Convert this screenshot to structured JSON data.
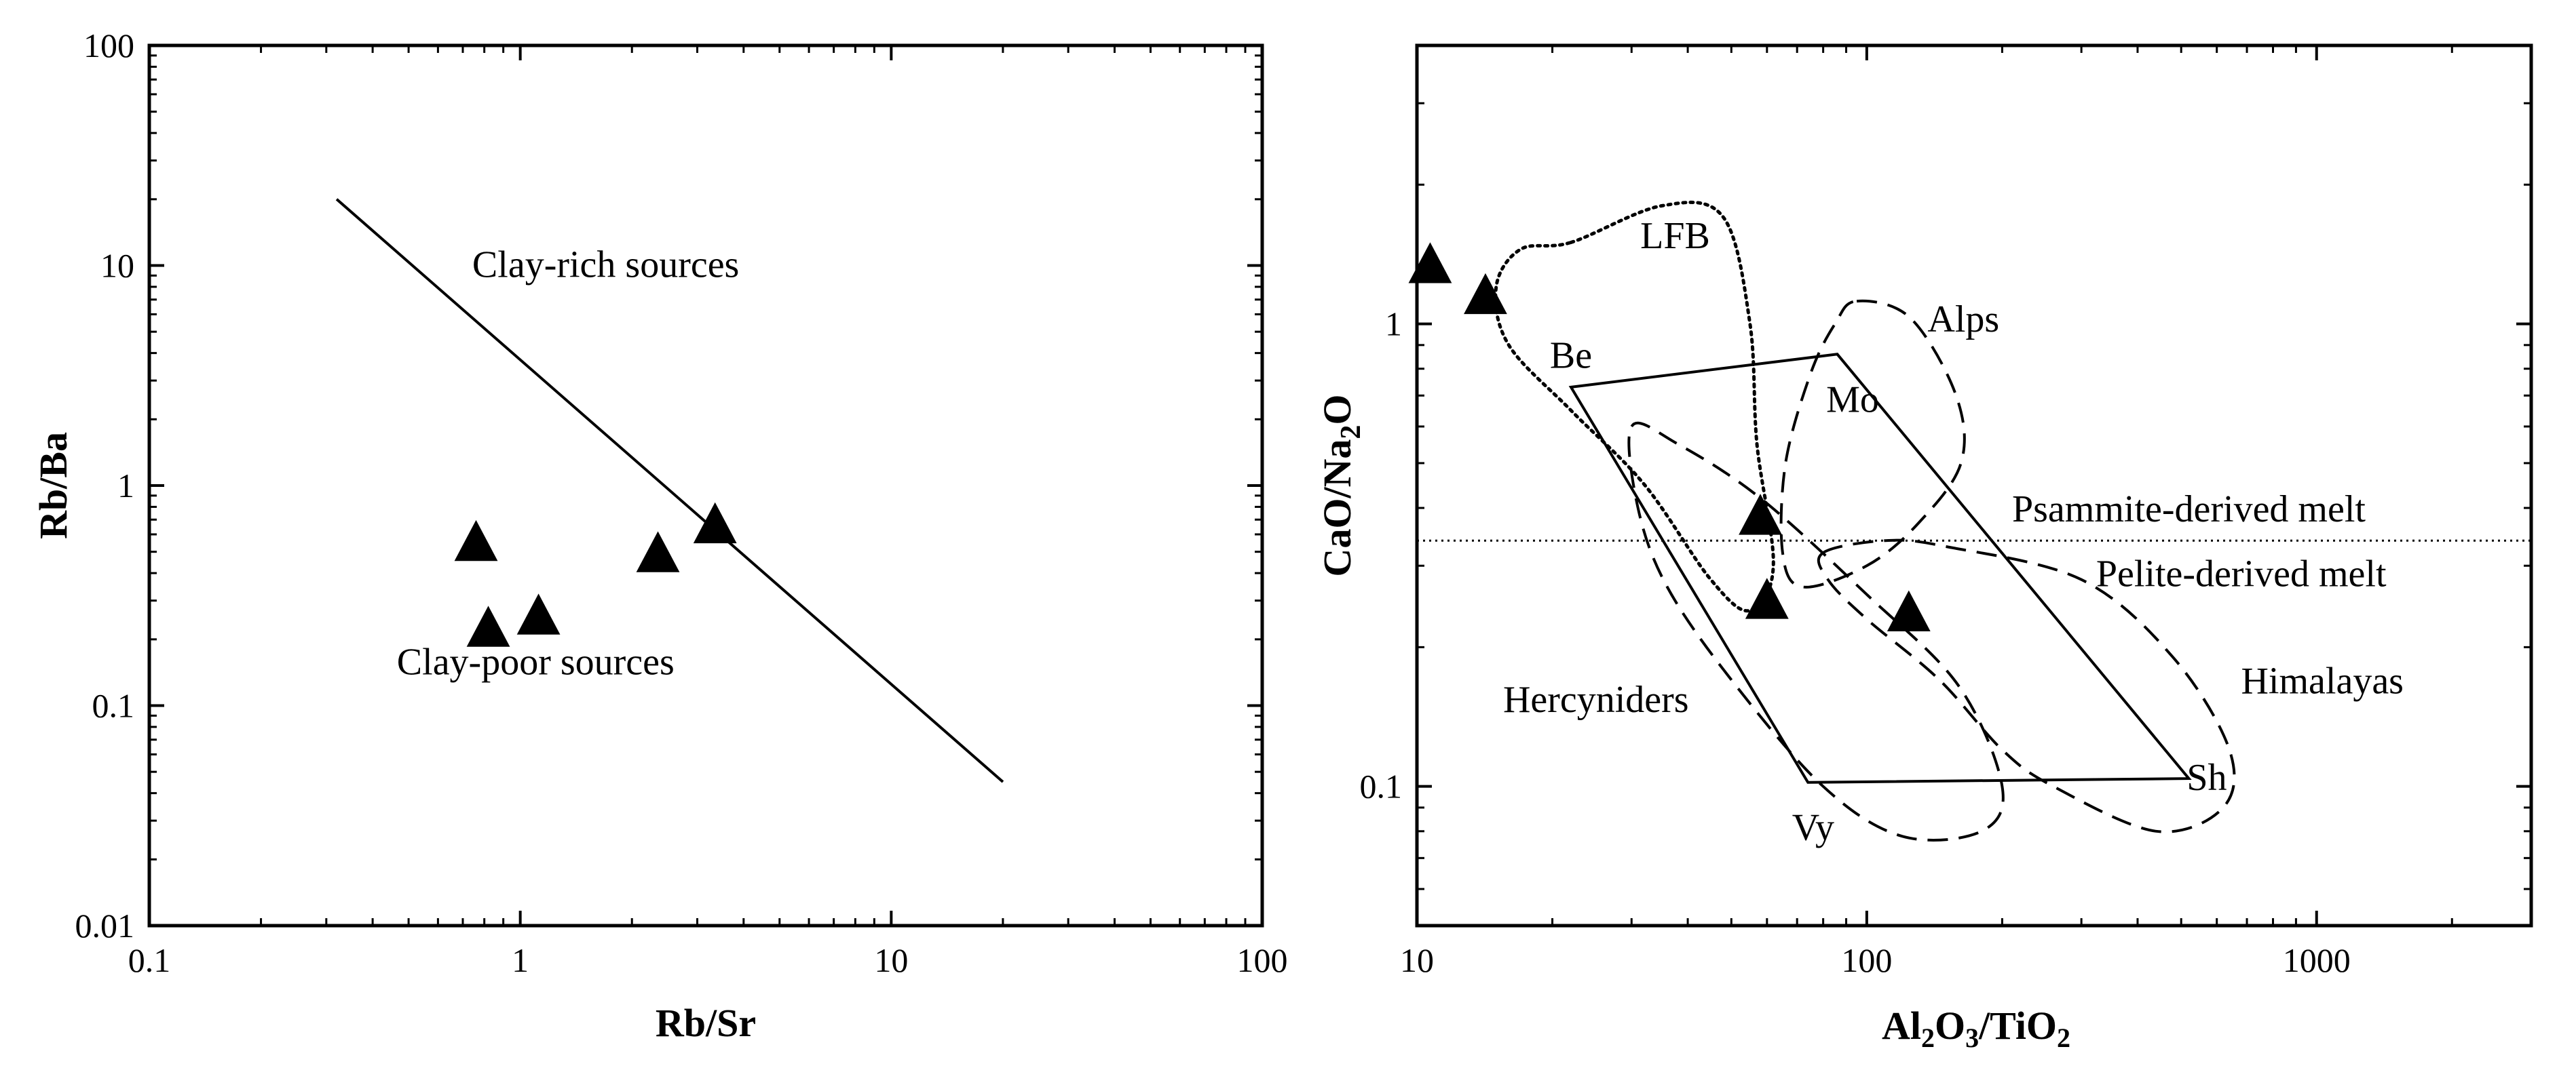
{
  "chart_data": [
    {
      "type": "scatter",
      "xscale": "log",
      "yscale": "log",
      "xlabel": "Rb/Sr",
      "ylabel": "Rb/Ba",
      "xlim": [
        0.1,
        100
      ],
      "ylim": [
        0.01,
        100
      ],
      "xticks": [
        {
          "value": 0.1,
          "label": "0.1"
        },
        {
          "value": 1,
          "label": "1"
        },
        {
          "value": 10,
          "label": "10"
        },
        {
          "value": 100,
          "label": "100"
        }
      ],
      "yticks": [
        {
          "value": 0.01,
          "label": "0.01"
        },
        {
          "value": 0.1,
          "label": "0.1"
        },
        {
          "value": 1,
          "label": "1"
        },
        {
          "value": 10,
          "label": "10"
        },
        {
          "value": 100,
          "label": "100"
        }
      ],
      "points": [
        {
          "x": 0.76,
          "y": 0.54
        },
        {
          "x": 0.82,
          "y": 0.22
        },
        {
          "x": 1.12,
          "y": 0.25
        },
        {
          "x": 2.35,
          "y": 0.48
        },
        {
          "x": 3.35,
          "y": 0.65
        }
      ],
      "lines": [
        {
          "name": "boundary",
          "style": "solid",
          "points": [
            [
              0.32,
              20
            ],
            [
              20,
              0.045
            ]
          ]
        }
      ],
      "annotations": [
        {
          "text": "Clay-rich sources",
          "x": 1.7,
          "y": 10.2
        },
        {
          "text": "Clay-poor sources",
          "x": 1.1,
          "y": 0.16
        }
      ]
    },
    {
      "type": "scatter",
      "xscale": "log",
      "yscale": "log",
      "xlabel": "Al₂O₃/TiO₂",
      "ylabel": "CaO/Na₂O",
      "xlim": [
        10,
        3000
      ],
      "ylim": [
        0.05,
        4
      ],
      "xticks": [
        {
          "value": 10,
          "label": "10"
        },
        {
          "value": 100,
          "label": "100"
        },
        {
          "value": 1000,
          "label": "1000"
        }
      ],
      "yticks": [
        {
          "value": 0.1,
          "label": "0.1"
        },
        {
          "value": 1,
          "label": "1"
        }
      ],
      "points": [
        {
          "x": 10.7,
          "y": 1.33
        },
        {
          "x": 14.2,
          "y": 1.14
        },
        {
          "x": 58,
          "y": 0.38
        },
        {
          "x": 60,
          "y": 0.25
        },
        {
          "x": 124,
          "y": 0.235
        }
      ],
      "lines": [
        {
          "name": "Psammite/Pelite boundary",
          "style": "dotted",
          "points": [
            [
              10,
              0.34
            ],
            [
              3000,
              0.34
            ]
          ]
        },
        {
          "name": "mixing-parallelogram",
          "style": "solid",
          "closed": true,
          "points": [
            [
              22,
              0.73
            ],
            [
              86,
              0.86
            ],
            [
              520,
              0.104
            ],
            [
              74,
              0.102
            ]
          ]
        }
      ],
      "fields": [
        {
          "name": "LFB",
          "style": "dotted",
          "points": [
            [
              22,
              1.5
            ],
            [
              35,
              1.8
            ],
            [
              48,
              1.7
            ],
            [
              55,
              1.0
            ],
            [
              57,
              0.55
            ],
            [
              62,
              0.3
            ],
            [
              55,
              0.24
            ],
            [
              45,
              0.28
            ],
            [
              32,
              0.45
            ],
            [
              22,
              0.65
            ],
            [
              16,
              0.9
            ],
            [
              15,
              1.2
            ],
            [
              17,
              1.45
            ]
          ]
        },
        {
          "name": "Alps",
          "style": "dashed",
          "points": [
            [
              95,
              1.12
            ],
            [
              125,
              1.03
            ],
            [
              158,
              0.7
            ],
            [
              162,
              0.5
            ],
            [
              130,
              0.37
            ],
            [
              100,
              0.3
            ],
            [
              72,
              0.27
            ],
            [
              65,
              0.32
            ],
            [
              66,
              0.5
            ],
            [
              75,
              0.78
            ],
            [
              85,
              1.0
            ]
          ]
        },
        {
          "name": "Hercyniders",
          "style": "dashed",
          "points": [
            [
              30,
              0.6
            ],
            [
              38,
              0.55
            ],
            [
              58,
              0.42
            ],
            [
              100,
              0.26
            ],
            [
              160,
              0.165
            ],
            [
              200,
              0.1
            ],
            [
              180,
              0.08
            ],
            [
              120,
              0.078
            ],
            [
              80,
              0.1
            ],
            [
              50,
              0.17
            ],
            [
              36,
              0.27
            ],
            [
              31,
              0.4
            ]
          ]
        },
        {
          "name": "Himalayas",
          "style": "dashed",
          "points": [
            [
              80,
              0.32
            ],
            [
              110,
              0.34
            ],
            [
              150,
              0.33
            ],
            [
              300,
              0.28
            ],
            [
              480,
              0.19
            ],
            [
              640,
              0.12
            ],
            [
              620,
              0.09
            ],
            [
              440,
              0.08
            ],
            [
              260,
              0.1
            ],
            [
              200,
              0.12
            ],
            [
              145,
              0.17
            ],
            [
              100,
              0.23
            ],
            [
              82,
              0.28
            ]
          ]
        }
      ],
      "annotations": [
        {
          "text": "LFB",
          "x": 37.5,
          "y": 1.56
        },
        {
          "text": "Alps",
          "x": 164,
          "y": 1.03
        },
        {
          "text": "Be",
          "x": 22,
          "y": 0.86
        },
        {
          "text": "Mo",
          "x": 93,
          "y": 0.69
        },
        {
          "text": "Psammite-derived melt",
          "x": 520,
          "y": 0.4
        },
        {
          "text": "Pelite-derived melt",
          "x": 680,
          "y": 0.29
        },
        {
          "text": "Hercyniders",
          "x": 25,
          "y": 0.155
        },
        {
          "text": "Himalayas",
          "x": 1030,
          "y": 0.17
        },
        {
          "text": "Vy",
          "x": 76,
          "y": 0.082
        },
        {
          "text": "Sh",
          "x": 570,
          "y": 0.105
        }
      ]
    }
  ]
}
